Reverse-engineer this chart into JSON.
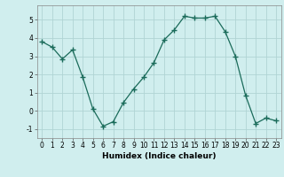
{
  "x": [
    0,
    1,
    2,
    3,
    4,
    5,
    6,
    7,
    8,
    9,
    10,
    11,
    12,
    13,
    14,
    15,
    16,
    17,
    18,
    19,
    20,
    21,
    22,
    23
  ],
  "y": [
    3.8,
    3.5,
    2.85,
    3.35,
    1.85,
    0.1,
    -0.85,
    -0.6,
    0.45,
    1.2,
    1.85,
    2.65,
    3.9,
    4.45,
    5.2,
    5.1,
    5.1,
    5.2,
    4.35,
    3.0,
    0.85,
    -0.7,
    -0.4,
    -0.55
  ],
  "line_color": "#1a6b5a",
  "marker": "+",
  "marker_size": 4,
  "bg_color": "#d0eeee",
  "grid_color": "#b0d4d4",
  "xlabel": "Humidex (Indice chaleur)",
  "ylim": [
    -1.5,
    5.8
  ],
  "xlim": [
    -0.5,
    23.5
  ],
  "yticks": [
    -1,
    0,
    1,
    2,
    3,
    4,
    5
  ],
  "xticks": [
    0,
    1,
    2,
    3,
    4,
    5,
    6,
    7,
    8,
    9,
    10,
    11,
    12,
    13,
    14,
    15,
    16,
    17,
    18,
    19,
    20,
    21,
    22,
    23
  ],
  "tick_fontsize": 5.5,
  "label_fontsize": 6.5
}
